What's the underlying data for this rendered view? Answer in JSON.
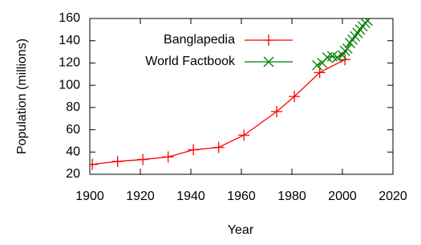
{
  "chart_data": {
    "type": "line",
    "xlabel": "Year",
    "ylabel": "Population (millions)",
    "xlim": [
      1900,
      2020
    ],
    "xticks": [
      1900,
      1920,
      1940,
      1960,
      1980,
      2000,
      2020
    ],
    "ylim": [
      20,
      160
    ],
    "yticks": [
      20,
      40,
      60,
      80,
      100,
      120,
      140,
      160
    ],
    "legend": "top-right",
    "series": [
      {
        "name": "Banglapedia",
        "color": "#ff0000",
        "marker": "plus",
        "x": [
          1901,
          1911,
          1921,
          1931,
          1941,
          1951,
          1961,
          1974,
          1981,
          1991,
          2001
        ],
        "values": [
          28.9,
          31.6,
          33.3,
          35.6,
          42.0,
          44.2,
          55.2,
          76.4,
          89.9,
          111.4,
          123.1
        ]
      },
      {
        "name": "World Factbook",
        "color": "#008000",
        "marker": "cross",
        "x": [
          1990,
          1992,
          1994,
          1996,
          1998,
          2000,
          2001,
          2002,
          2003,
          2004,
          2005,
          2006,
          2007,
          2008,
          2009,
          2010
        ],
        "values": [
          118,
          120,
          125,
          126,
          125,
          127,
          131,
          133,
          138,
          141,
          144,
          147,
          150,
          153,
          156,
          158
        ]
      }
    ]
  }
}
